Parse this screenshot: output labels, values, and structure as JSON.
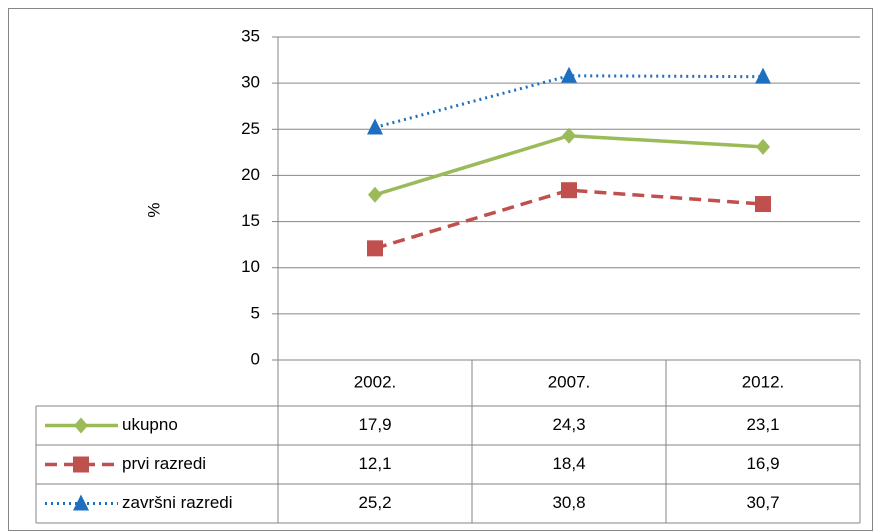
{
  "chart_data": {
    "type": "line",
    "y_label": "%",
    "categories": [
      "2002.",
      "2007.",
      "2012."
    ],
    "series": [
      {
        "name": "ukupno",
        "color": "#9bbb59",
        "line_style": "solid",
        "marker": "diamond",
        "values": [
          17.9,
          24.3,
          23.1
        ],
        "value_labels": [
          "17,9",
          "24,3",
          "23,1"
        ]
      },
      {
        "name": "prvi razredi",
        "color": "#c0504d",
        "line_style": "dashed",
        "marker": "square",
        "values": [
          12.1,
          18.4,
          16.9
        ],
        "value_labels": [
          "12,1",
          "18,4",
          "16,9"
        ]
      },
      {
        "name": "završni razredi",
        "color": "#1f6fc0",
        "line_style": "dotted",
        "marker": "triangle",
        "values": [
          25.2,
          30.8,
          30.7
        ],
        "value_labels": [
          "25,2",
          "30,8",
          "30,7"
        ]
      }
    ],
    "ylim": [
      0,
      35
    ],
    "yticks": [
      0,
      5,
      10,
      15,
      20,
      25,
      30,
      35
    ],
    "grid": true
  }
}
